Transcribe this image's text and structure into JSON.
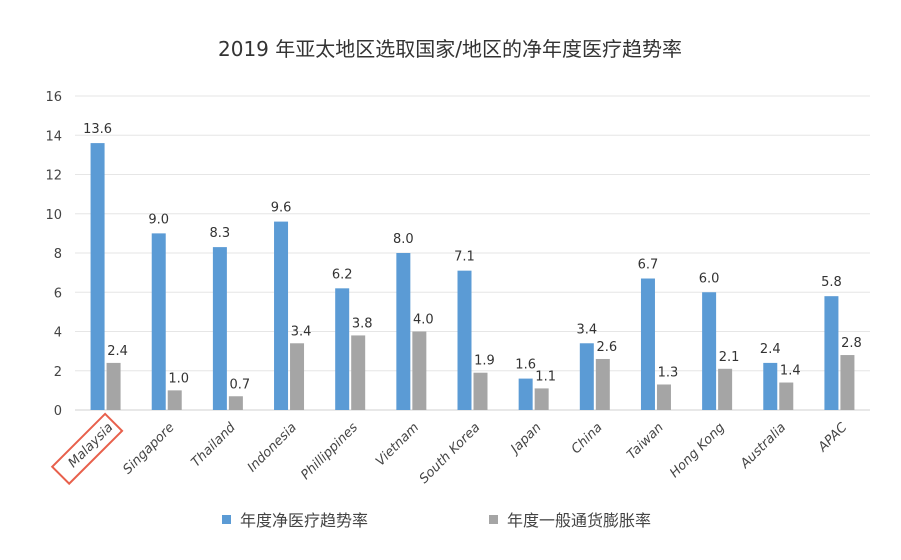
{
  "chart_data": {
    "type": "bar",
    "title": "2019 年亚太地区选取国家/地区的净年度医疗趋势率",
    "categories": [
      "Malaysia",
      "Singapore",
      "Thailand",
      "Indonesia",
      "Phillippines",
      "Vietnam",
      "South Korea",
      "Japan",
      "China",
      "Taiwan",
      "Hong Kong",
      "Australia",
      "APAC"
    ],
    "series": [
      {
        "name": "年度净医疗趋势率",
        "color": "#5b9bd5",
        "values": [
          13.6,
          9.0,
          8.3,
          9.6,
          6.2,
          8.0,
          7.1,
          1.6,
          3.4,
          6.7,
          6.0,
          2.4,
          5.8
        ]
      },
      {
        "name": "年度一般通货膨胀率",
        "color": "#a5a5a5",
        "values": [
          2.4,
          1.0,
          0.7,
          3.4,
          3.8,
          4.0,
          1.9,
          1.1,
          2.6,
          1.3,
          2.1,
          1.4,
          2.8
        ]
      }
    ],
    "ylim": [
      0,
      16
    ],
    "yticks": [
      0,
      2,
      4,
      6,
      8,
      10,
      12,
      14,
      16
    ],
    "grid": true,
    "legend": "bottom",
    "highlighted_category": "Malaysia",
    "highlight_color": "#e8604c"
  }
}
